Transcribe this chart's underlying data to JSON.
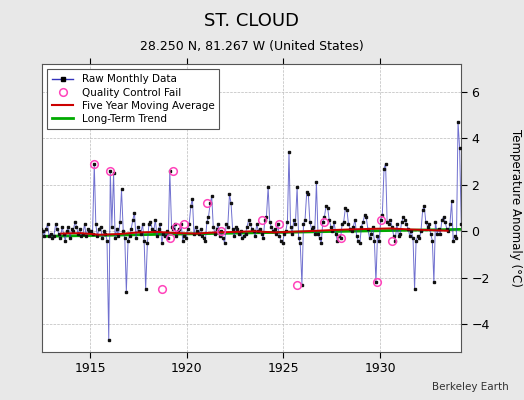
{
  "title": "ST. CLOUD",
  "subtitle": "28.250 N, 81.267 W (United States)",
  "ylabel": "Temperature Anomaly (°C)",
  "credit": "Berkeley Earth",
  "background_color": "#e8e8e8",
  "plot_bg_color": "#ffffff",
  "xlim": [
    1912.5,
    1934.2
  ],
  "ylim": [
    -5.2,
    7.2
  ],
  "yticks": [
    -4,
    -2,
    0,
    2,
    4,
    6
  ],
  "xticks": [
    1915,
    1920,
    1925,
    1930
  ],
  "raw_x": [
    1912.04,
    1912.12,
    1912.21,
    1912.29,
    1912.37,
    1912.46,
    1912.54,
    1912.62,
    1912.71,
    1912.79,
    1912.87,
    1912.96,
    1913.04,
    1913.12,
    1913.21,
    1913.29,
    1913.37,
    1913.46,
    1913.54,
    1913.62,
    1913.71,
    1913.79,
    1913.87,
    1913.96,
    1914.04,
    1914.12,
    1914.21,
    1914.29,
    1914.37,
    1914.46,
    1914.54,
    1914.62,
    1914.71,
    1914.79,
    1914.87,
    1914.96,
    1915.04,
    1915.12,
    1915.21,
    1915.29,
    1915.37,
    1915.46,
    1915.54,
    1915.62,
    1915.71,
    1915.79,
    1915.87,
    1915.96,
    1916.04,
    1916.12,
    1916.21,
    1916.29,
    1916.37,
    1916.46,
    1916.54,
    1916.62,
    1916.71,
    1916.79,
    1916.87,
    1916.96,
    1917.04,
    1917.12,
    1917.21,
    1917.29,
    1917.37,
    1917.46,
    1917.54,
    1917.62,
    1917.71,
    1917.79,
    1917.87,
    1917.96,
    1918.04,
    1918.12,
    1918.21,
    1918.29,
    1918.37,
    1918.46,
    1918.54,
    1918.62,
    1918.71,
    1918.79,
    1918.87,
    1918.96,
    1919.04,
    1919.12,
    1919.21,
    1919.29,
    1919.37,
    1919.46,
    1919.54,
    1919.62,
    1919.71,
    1919.79,
    1919.87,
    1919.96,
    1920.04,
    1920.12,
    1920.21,
    1920.29,
    1920.37,
    1920.46,
    1920.54,
    1920.62,
    1920.71,
    1920.79,
    1920.87,
    1920.96,
    1921.04,
    1921.12,
    1921.21,
    1921.29,
    1921.37,
    1921.46,
    1921.54,
    1921.62,
    1921.71,
    1921.79,
    1921.87,
    1921.96,
    1922.04,
    1922.12,
    1922.21,
    1922.29,
    1922.37,
    1922.46,
    1922.54,
    1922.62,
    1922.71,
    1922.79,
    1922.87,
    1922.96,
    1923.04,
    1923.12,
    1923.21,
    1923.29,
    1923.37,
    1923.46,
    1923.54,
    1923.62,
    1923.71,
    1923.79,
    1923.87,
    1923.96,
    1924.04,
    1924.12,
    1924.21,
    1924.29,
    1924.37,
    1924.46,
    1924.54,
    1924.62,
    1924.71,
    1924.79,
    1924.87,
    1924.96,
    1925.04,
    1925.12,
    1925.21,
    1925.29,
    1925.37,
    1925.46,
    1925.54,
    1925.62,
    1925.71,
    1925.79,
    1925.87,
    1925.96,
    1926.04,
    1926.12,
    1926.21,
    1926.29,
    1926.37,
    1926.46,
    1926.54,
    1926.62,
    1926.71,
    1926.79,
    1926.87,
    1926.96,
    1927.04,
    1927.12,
    1927.21,
    1927.29,
    1927.37,
    1927.46,
    1927.54,
    1927.62,
    1927.71,
    1927.79,
    1927.87,
    1927.96,
    1928.04,
    1928.12,
    1928.21,
    1928.29,
    1928.37,
    1928.46,
    1928.54,
    1928.62,
    1928.71,
    1928.79,
    1928.87,
    1928.96,
    1929.04,
    1929.12,
    1929.21,
    1929.29,
    1929.37,
    1929.46,
    1929.54,
    1929.62,
    1929.71,
    1929.79,
    1929.87,
    1929.96,
    1930.04,
    1930.12,
    1930.21,
    1930.29,
    1930.37,
    1930.46,
    1930.54,
    1930.62,
    1930.71,
    1930.79,
    1930.87,
    1930.96,
    1931.04,
    1931.12,
    1931.21,
    1931.29,
    1931.37,
    1931.46,
    1931.54,
    1931.62,
    1931.71,
    1931.79,
    1931.87,
    1931.96,
    1932.04,
    1932.12,
    1932.21,
    1932.29,
    1932.37,
    1932.46,
    1932.54,
    1932.62,
    1932.71,
    1932.79,
    1932.87,
    1932.96,
    1933.04,
    1933.12,
    1933.21,
    1933.29,
    1933.37,
    1933.46,
    1933.54,
    1933.62,
    1933.71,
    1933.79,
    1933.87,
    1933.96,
    1934.04,
    1934.12,
    1934.21,
    1934.29,
    1934.37,
    1934.46
  ],
  "raw_y": [
    0.2,
    0.1,
    -0.1,
    0.0,
    -0.3,
    0.1,
    0.0,
    -0.2,
    0.1,
    0.3,
    -0.2,
    -0.1,
    -0.3,
    -0.2,
    0.3,
    0.1,
    -0.1,
    -0.3,
    0.2,
    -0.1,
    -0.4,
    0.0,
    0.2,
    -0.3,
    0.1,
    0.0,
    0.4,
    0.2,
    -0.1,
    0.1,
    -0.2,
    -0.1,
    0.3,
    -0.2,
    0.1,
    0.0,
    0.0,
    -0.1,
    2.9,
    0.3,
    -0.2,
    0.1,
    0.2,
    -0.3,
    0.0,
    -0.1,
    -0.4,
    -4.7,
    2.6,
    0.2,
    2.5,
    -0.3,
    0.1,
    -0.2,
    0.4,
    1.8,
    0.0,
    -0.3,
    -2.6,
    -0.4,
    -0.2,
    0.1,
    0.5,
    0.8,
    -0.3,
    0.2,
    0.0,
    -0.1,
    0.3,
    -0.4,
    -2.5,
    -0.5,
    0.3,
    0.4,
    0.1,
    0.0,
    0.5,
    -0.2,
    0.1,
    0.3,
    -0.5,
    -0.1,
    -0.2,
    0.0,
    -0.3,
    2.6,
    0.2,
    0.1,
    0.3,
    -0.2,
    0.0,
    0.1,
    0.3,
    -0.4,
    -0.2,
    -0.3,
    0.1,
    0.3,
    1.1,
    1.4,
    -0.1,
    0.2,
    0.0,
    -0.1,
    0.1,
    -0.2,
    -0.3,
    -0.4,
    0.4,
    0.6,
    1.2,
    1.5,
    0.2,
    -0.1,
    0.1,
    0.3,
    -0.2,
    0.0,
    -0.3,
    -0.5,
    0.3,
    0.2,
    1.6,
    1.2,
    0.1,
    -0.2,
    0.2,
    0.1,
    -0.1,
    0.0,
    -0.3,
    -0.2,
    -0.1,
    0.2,
    0.5,
    0.3,
    0.1,
    0.0,
    -0.2,
    0.3,
    0.0,
    0.1,
    -0.1,
    -0.3,
    0.5,
    0.6,
    1.9,
    0.4,
    0.2,
    0.0,
    0.1,
    -0.1,
    0.3,
    -0.2,
    -0.4,
    -0.5,
    -0.1,
    0.0,
    0.4,
    3.4,
    0.2,
    -0.1,
    0.5,
    0.3,
    1.9,
    -0.3,
    -0.5,
    -2.3,
    0.3,
    0.5,
    1.7,
    1.6,
    0.4,
    0.1,
    0.2,
    -0.1,
    2.1,
    -0.1,
    -0.3,
    -0.5,
    0.4,
    0.6,
    1.1,
    1.0,
    0.5,
    0.2,
    0.0,
    0.4,
    -0.1,
    -0.4,
    -0.2,
    -0.3,
    0.3,
    0.4,
    1.0,
    0.9,
    0.3,
    0.1,
    0.0,
    0.2,
    0.5,
    -0.2,
    -0.4,
    -0.5,
    0.2,
    0.4,
    0.7,
    0.6,
    0.1,
    -0.3,
    -0.1,
    0.2,
    -0.4,
    -2.2,
    -0.2,
    -0.4,
    0.5,
    0.7,
    2.7,
    2.9,
    0.4,
    0.3,
    0.5,
    0.2,
    -0.2,
    -0.4,
    0.3,
    -0.2,
    -0.1,
    0.4,
    0.6,
    0.5,
    0.3,
    0.1,
    -0.2,
    0.0,
    -0.3,
    -2.5,
    -0.4,
    -0.2,
    -0.3,
    0.0,
    0.9,
    1.1,
    0.4,
    0.2,
    0.3,
    -0.1,
    -0.4,
    -2.2,
    0.4,
    -0.1,
    0.1,
    -0.1,
    0.5,
    0.6,
    0.4,
    0.1,
    0.0,
    0.3,
    1.3,
    -0.4,
    -0.2,
    -0.3,
    4.7,
    3.6,
    0.3,
    -0.2,
    0.6,
    0.2
  ],
  "qc_x": [
    1915.21,
    1916.04,
    1918.71,
    1919.12,
    1919.29,
    1919.46,
    1919.87,
    1921.04,
    1921.79,
    1923.87,
    1924.79,
    1925.71,
    1927.12,
    1927.96,
    1929.87,
    1930.04,
    1930.62
  ],
  "qc_y": [
    2.9,
    2.6,
    -2.5,
    -0.3,
    2.6,
    0.2,
    0.3,
    1.2,
    0.0,
    0.5,
    0.3,
    -2.3,
    0.4,
    -0.3,
    -2.2,
    0.5,
    -0.4
  ],
  "ma_x": [
    1913.5,
    1914.5,
    1915.5,
    1916.5,
    1917.5,
    1918.5,
    1919.5,
    1920.5,
    1921.5,
    1922.5,
    1923.5,
    1924.5,
    1925.5,
    1926.5,
    1927.5,
    1928.5,
    1929.5,
    1930.5,
    1931.5,
    1932.5,
    1933.5
  ],
  "ma_y": [
    -0.1,
    -0.08,
    -0.15,
    -0.12,
    -0.05,
    -0.03,
    -0.08,
    -0.1,
    -0.05,
    -0.03,
    0.0,
    -0.05,
    -0.02,
    0.01,
    0.05,
    0.08,
    0.1,
    0.12,
    0.08,
    0.05,
    0.02
  ],
  "ma_visible_start": 1913.0,
  "ma_visible_end": 1934.0,
  "trend_x": [
    1912.5,
    1934.2
  ],
  "trend_y": [
    -0.22,
    0.08
  ],
  "line_color": "#3333bb",
  "line_alpha": 0.7,
  "dot_color": "#111111",
  "qc_color": "#ff44bb",
  "ma_color": "#cc0000",
  "trend_color": "#00aa00",
  "legend_fontsize": 7.5,
  "tick_labelsize": 9,
  "title_fontsize": 13,
  "subtitle_fontsize": 9
}
